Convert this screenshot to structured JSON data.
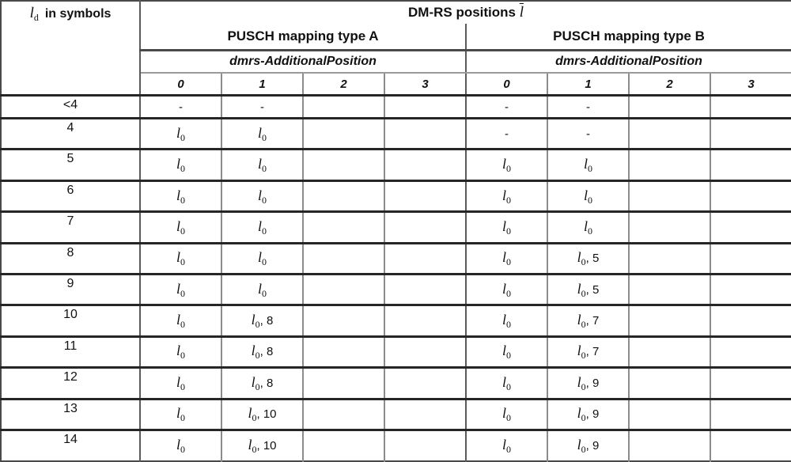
{
  "table": {
    "corner": {
      "symbol": "l",
      "subscript": "d",
      "text": "in symbols"
    },
    "title": {
      "text": "DM-RS positions",
      "symbol": "l",
      "symbol_has_overbar": true
    },
    "groups": [
      {
        "label": "PUSCH mapping type A",
        "subheader": "dmrs-AdditionalPosition",
        "columns": [
          "0",
          "1",
          "2",
          "3"
        ]
      },
      {
        "label": "PUSCH mapping type B",
        "subheader": "dmrs-AdditionalPosition",
        "columns": [
          "0",
          "1",
          "2",
          "3"
        ]
      }
    ],
    "rows": [
      {
        "label": "<4",
        "typeA": [
          "-",
          "-",
          "",
          ""
        ],
        "typeB": [
          "-",
          "-",
          "",
          ""
        ]
      },
      {
        "label": "4",
        "typeA": [
          "l0",
          "l0",
          "",
          ""
        ],
        "typeB": [
          "-",
          "-",
          "",
          ""
        ]
      },
      {
        "label": "5",
        "typeA": [
          "l0",
          "l0",
          "",
          ""
        ],
        "typeB": [
          "l0",
          "l0",
          "",
          ""
        ]
      },
      {
        "label": "6",
        "typeA": [
          "l0",
          "l0",
          "",
          ""
        ],
        "typeB": [
          "l0",
          "l0",
          "",
          ""
        ]
      },
      {
        "label": "7",
        "typeA": [
          "l0",
          "l0",
          "",
          ""
        ],
        "typeB": [
          "l0",
          "l0",
          "",
          ""
        ]
      },
      {
        "label": "8",
        "typeA": [
          "l0",
          "l0",
          "",
          ""
        ],
        "typeB": [
          "l0",
          "l0, 5",
          "",
          ""
        ]
      },
      {
        "label": "9",
        "typeA": [
          "l0",
          "l0",
          "",
          ""
        ],
        "typeB": [
          "l0",
          "l0, 5",
          "",
          ""
        ]
      },
      {
        "label": "10",
        "typeA": [
          "l0",
          "l0, 8",
          "",
          ""
        ],
        "typeB": [
          "l0",
          "l0, 7",
          "",
          ""
        ]
      },
      {
        "label": "11",
        "typeA": [
          "l0",
          "l0, 8",
          "",
          ""
        ],
        "typeB": [
          "l0",
          "l0, 7",
          "",
          ""
        ]
      },
      {
        "label": "12",
        "typeA": [
          "l0",
          "l0, 8",
          "",
          ""
        ],
        "typeB": [
          "l0",
          "l0, 9",
          "",
          ""
        ]
      },
      {
        "label": "13",
        "typeA": [
          "l0",
          "l0, 10",
          "",
          ""
        ],
        "typeB": [
          "l0",
          "l0, 9",
          "",
          ""
        ]
      },
      {
        "label": "14",
        "typeA": [
          "l0",
          "l0, 10",
          "",
          ""
        ],
        "typeB": [
          "l0",
          "l0, 9",
          "",
          ""
        ]
      }
    ],
    "colors": {
      "background": "#ffffff",
      "text": "#111111",
      "border_dark": "#262626",
      "border_medium": "#5a5a5a",
      "border_light": "#8c8c8c"
    }
  }
}
